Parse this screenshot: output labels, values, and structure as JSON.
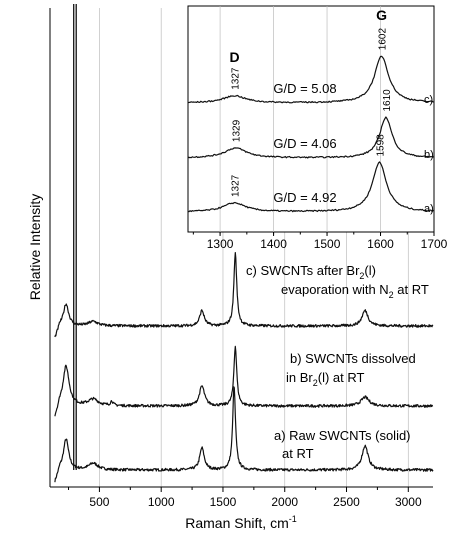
{
  "chart_data": [
    {
      "type": "line",
      "name": "main",
      "xlabel": "Raman Shift, cm",
      "xlabel_sup": "-1",
      "ylabel": "Relative Intensity",
      "xlim": [
        100,
        3200
      ],
      "xticks": [
        500,
        1000,
        1500,
        2000,
        2500,
        3000
      ],
      "grid": "vertical",
      "series": [
        {
          "offset": 0.0,
          "peaks": [
            [
              230,
              0.14,
              25
            ],
            [
              450,
              0.03,
              45
            ],
            [
              1330,
              0.1,
              22
            ],
            [
              1590,
              0.38,
              14
            ],
            [
              2650,
              0.11,
              30
            ]
          ]
        },
        {
          "offset": 0.21,
          "peaks": [
            [
              230,
              0.18,
              30
            ],
            [
              450,
              0.03,
              50
            ],
            [
              600,
              0.02,
              12
            ],
            [
              1330,
              0.09,
              25
            ],
            [
              1600,
              0.27,
              14
            ],
            [
              2650,
              0.04,
              40
            ]
          ]
        },
        {
          "offset": 0.42,
          "peaks": [
            [
              230,
              0.1,
              25
            ],
            [
              450,
              0.02,
              45
            ],
            [
              1330,
              0.07,
              22
            ],
            [
              1600,
              0.33,
              14
            ],
            [
              2650,
              0.07,
              30
            ]
          ],
          "sharp_line": 300
        }
      ],
      "annotations": [
        {
          "trace": 2,
          "lines": [
            "c) SWCNTs after Br",
            "2",
            "(l)"
          ],
          "line2": [
            "evaporation with N",
            "2",
            " at RT"
          ]
        },
        {
          "trace": 1,
          "lines": [
            "b) SWCNTs dissolved"
          ],
          "line2": [
            "in Br",
            "2",
            "(l) at RT"
          ]
        },
        {
          "trace": 0,
          "lines": [
            "a) Raw SWCNTs (solid)"
          ],
          "line2": [
            "at RT"
          ]
        }
      ]
    },
    {
      "type": "line",
      "name": "inset",
      "xlim": [
        1240,
        1700
      ],
      "xticks": [
        1300,
        1400,
        1500,
        1600,
        1700
      ],
      "grid": "vertical",
      "band_labels": [
        {
          "text": "D",
          "x": 1327
        },
        {
          "text": "G",
          "x": 1602
        }
      ],
      "series": [
        {
          "label": "a)",
          "ratio": "G/D = 4.92",
          "d_peak": "1327",
          "g_peak": "1598",
          "peaks": [
            [
              1327,
              0.1,
              25
            ],
            [
              1598,
              0.55,
              16
            ]
          ]
        },
        {
          "label": "b)",
          "ratio": "G/D = 4.06",
          "d_peak": "1329",
          "g_peak": "1610",
          "peaks": [
            [
              1329,
              0.11,
              25
            ],
            [
              1610,
              0.45,
              14
            ]
          ]
        },
        {
          "label": "c)",
          "ratio": "G/D = 5.08",
          "d_peak": "1327",
          "g_peak": "1602",
          "peaks": [
            [
              1327,
              0.08,
              25
            ],
            [
              1602,
              0.52,
              16
            ]
          ]
        }
      ]
    }
  ]
}
